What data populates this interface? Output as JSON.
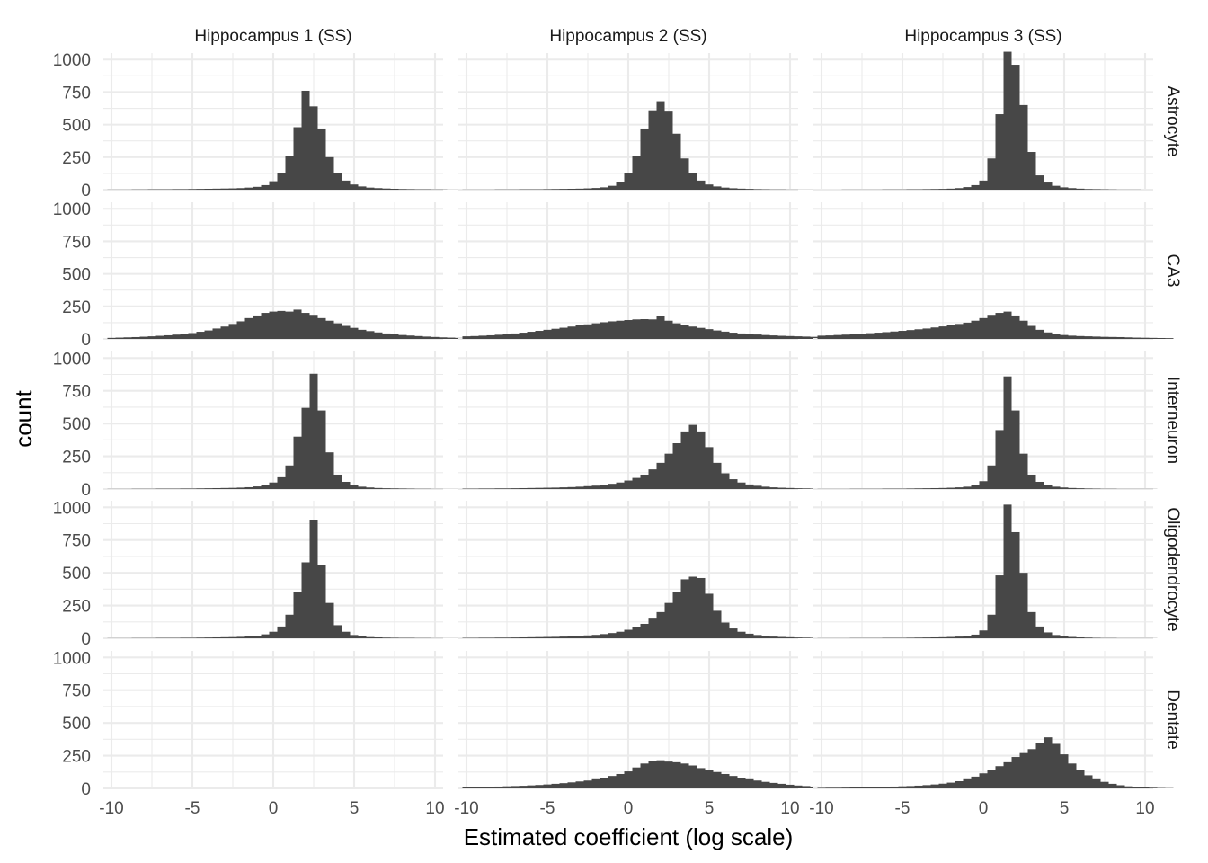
{
  "chart_data": {
    "type": "bar",
    "subtype": "faceted-histogram",
    "xlabel": "Estimated coefficient (log scale)",
    "ylabel": "count",
    "xlim": [
      -10.5,
      10.5
    ],
    "ylim": [
      0,
      1050
    ],
    "x_ticks": [
      -10,
      -5,
      0,
      5,
      10
    ],
    "x_tick_labels": [
      "-10",
      "-5",
      "0",
      "5",
      "10"
    ],
    "y_ticks": [
      0,
      250,
      500,
      750,
      1000
    ],
    "y_tick_labels": [
      "0",
      "250",
      "500",
      "750",
      "1000"
    ],
    "grid": true,
    "bin_width": 0.5,
    "bin_start": -10.25,
    "color": "#474747",
    "columns": [
      "Hippocampus 1 (SS)",
      "Hippocampus 2 (SS)",
      "Hippocampus 3 (SS)"
    ],
    "rows": [
      "Astrocyte",
      "CA3",
      "Interneuron",
      "Oligodendrocyte",
      "Dentate"
    ],
    "panels": [
      {
        "row": "Astrocyte",
        "col": "Hippocampus 1 (SS)",
        "counts": [
          1,
          1,
          1,
          2,
          2,
          3,
          3,
          3,
          4,
          4,
          5,
          6,
          7,
          8,
          9,
          10,
          12,
          16,
          22,
          35,
          65,
          130,
          260,
          480,
          760,
          640,
          470,
          250,
          130,
          70,
          40,
          25,
          16,
          12,
          9,
          7,
          5,
          4,
          3,
          3,
          2,
          2,
          1,
          1
        ]
      },
      {
        "row": "Astrocyte",
        "col": "Hippocampus 2 (SS)",
        "counts": [
          1,
          1,
          1,
          1,
          2,
          2,
          2,
          3,
          3,
          3,
          4,
          5,
          6,
          7,
          8,
          10,
          13,
          18,
          30,
          60,
          130,
          260,
          470,
          610,
          680,
          600,
          430,
          240,
          130,
          70,
          40,
          25,
          16,
          11,
          8,
          6,
          4,
          3,
          2,
          2,
          1,
          1,
          1,
          1
        ]
      },
      {
        "row": "Astrocyte",
        "col": "Hippocampus 3 (SS)",
        "counts": [
          0,
          0,
          0,
          1,
          1,
          1,
          1,
          1,
          2,
          2,
          2,
          3,
          3,
          4,
          5,
          6,
          8,
          12,
          20,
          35,
          70,
          240,
          580,
          1060,
          960,
          650,
          290,
          110,
          55,
          30,
          18,
          12,
          8,
          5,
          4,
          3,
          2,
          1,
          1,
          1,
          0,
          0,
          0,
          0
        ]
      },
      {
        "row": "CA3",
        "col": "Hippocampus 1 (SS)",
        "counts": [
          8,
          10,
          12,
          14,
          17,
          20,
          24,
          28,
          33,
          38,
          45,
          55,
          65,
          80,
          95,
          115,
          135,
          160,
          180,
          200,
          210,
          215,
          210,
          225,
          200,
          185,
          160,
          140,
          120,
          100,
          85,
          70,
          60,
          50,
          42,
          36,
          30,
          26,
          22,
          18,
          15,
          12,
          10,
          8
        ]
      },
      {
        "row": "CA3",
        "col": "Hippocampus 2 (SS)",
        "counts": [
          20,
          22,
          25,
          28,
          32,
          36,
          42,
          48,
          55,
          62,
          70,
          78,
          86,
          95,
          104,
          112,
          120,
          128,
          135,
          140,
          145,
          150,
          152,
          150,
          175,
          140,
          120,
          105,
          95,
          85,
          75,
          65,
          56,
          48,
          42,
          38,
          34,
          30,
          27,
          24,
          22,
          20,
          18,
          16
        ]
      },
      {
        "row": "CA3",
        "col": "Hippocampus 3 (SS)",
        "counts": [
          25,
          27,
          30,
          33,
          36,
          40,
          44,
          48,
          52,
          57,
          62,
          68,
          74,
          80,
          88,
          96,
          105,
          115,
          125,
          140,
          160,
          185,
          200,
          210,
          180,
          140,
          100,
          70,
          50,
          38,
          30,
          25,
          22,
          20,
          18,
          16,
          15,
          14,
          12,
          10,
          9,
          8,
          7,
          6
        ]
      },
      {
        "row": "Interneuron",
        "col": "Hippocampus 1 (SS)",
        "counts": [
          1,
          1,
          1,
          2,
          2,
          2,
          3,
          3,
          3,
          4,
          4,
          5,
          6,
          7,
          8,
          9,
          11,
          14,
          20,
          30,
          50,
          90,
          180,
          400,
          620,
          880,
          600,
          280,
          110,
          55,
          30,
          18,
          12,
          8,
          6,
          5,
          4,
          3,
          2,
          2,
          1,
          1,
          1,
          1
        ]
      },
      {
        "row": "Interneuron",
        "col": "Hippocampus 2 (SS)",
        "counts": [
          3,
          3,
          4,
          4,
          5,
          5,
          6,
          7,
          8,
          9,
          10,
          11,
          13,
          15,
          18,
          22,
          26,
          32,
          40,
          50,
          65,
          85,
          110,
          150,
          200,
          270,
          350,
          440,
          490,
          440,
          320,
          200,
          120,
          75,
          50,
          35,
          25,
          18,
          13,
          10,
          8,
          6,
          5,
          4
        ]
      },
      {
        "row": "Interneuron",
        "col": "Hippocampus 3 (SS)",
        "counts": [
          1,
          1,
          1,
          1,
          2,
          2,
          2,
          2,
          3,
          3,
          3,
          4,
          5,
          6,
          7,
          8,
          10,
          13,
          18,
          28,
          60,
          180,
          450,
          860,
          600,
          270,
          110,
          55,
          30,
          18,
          12,
          8,
          6,
          4,
          3,
          2,
          2,
          1,
          1,
          1,
          1,
          1,
          0,
          0
        ]
      },
      {
        "row": "Oligodendrocyte",
        "col": "Hippocampus 1 (SS)",
        "counts": [
          1,
          1,
          1,
          2,
          2,
          2,
          3,
          3,
          3,
          4,
          4,
          5,
          6,
          7,
          8,
          9,
          11,
          14,
          20,
          30,
          50,
          90,
          180,
          350,
          580,
          900,
          560,
          270,
          100,
          50,
          25,
          14,
          9,
          7,
          5,
          4,
          3,
          3,
          2,
          2,
          1,
          1,
          1,
          1
        ]
      },
      {
        "row": "Oligodendrocyte",
        "col": "Hippocampus 2 (SS)",
        "counts": [
          3,
          3,
          4,
          4,
          5,
          5,
          6,
          7,
          8,
          9,
          10,
          11,
          13,
          15,
          18,
          22,
          26,
          32,
          40,
          50,
          65,
          85,
          110,
          150,
          200,
          270,
          350,
          450,
          470,
          460,
          340,
          210,
          120,
          75,
          50,
          35,
          25,
          18,
          13,
          10,
          8,
          6,
          5,
          4
        ]
      },
      {
        "row": "Oligodendrocyte",
        "col": "Hippocampus 3 (SS)",
        "counts": [
          1,
          1,
          1,
          1,
          2,
          2,
          2,
          2,
          3,
          3,
          3,
          4,
          5,
          6,
          7,
          8,
          10,
          13,
          18,
          28,
          60,
          180,
          480,
          1020,
          810,
          500,
          200,
          90,
          45,
          25,
          15,
          10,
          7,
          5,
          3,
          2,
          2,
          1,
          1,
          1,
          1,
          1,
          0,
          0
        ]
      },
      {
        "row": "Dentate",
        "col": "Hippocampus 1 (SS)",
        "counts": []
      },
      {
        "row": "Dentate",
        "col": "Hippocampus 2 (SS)",
        "counts": [
          10,
          11,
          12,
          13,
          14,
          16,
          18,
          20,
          23,
          26,
          30,
          35,
          40,
          46,
          53,
          60,
          70,
          82,
          95,
          110,
          130,
          160,
          190,
          210,
          215,
          205,
          200,
          190,
          175,
          155,
          140,
          125,
          110,
          95,
          82,
          70,
          60,
          50,
          42,
          35,
          28,
          22,
          18,
          14
        ]
      },
      {
        "row": "Dentate",
        "col": "Hippocampus 3 (SS)",
        "counts": [
          4,
          5,
          5,
          6,
          7,
          8,
          9,
          10,
          12,
          14,
          16,
          18,
          21,
          25,
          30,
          36,
          44,
          55,
          70,
          90,
          115,
          140,
          170,
          200,
          240,
          270,
          300,
          350,
          390,
          340,
          260,
          190,
          140,
          100,
          70,
          50,
          35,
          24,
          16,
          10,
          7,
          5,
          3,
          2
        ]
      }
    ]
  }
}
